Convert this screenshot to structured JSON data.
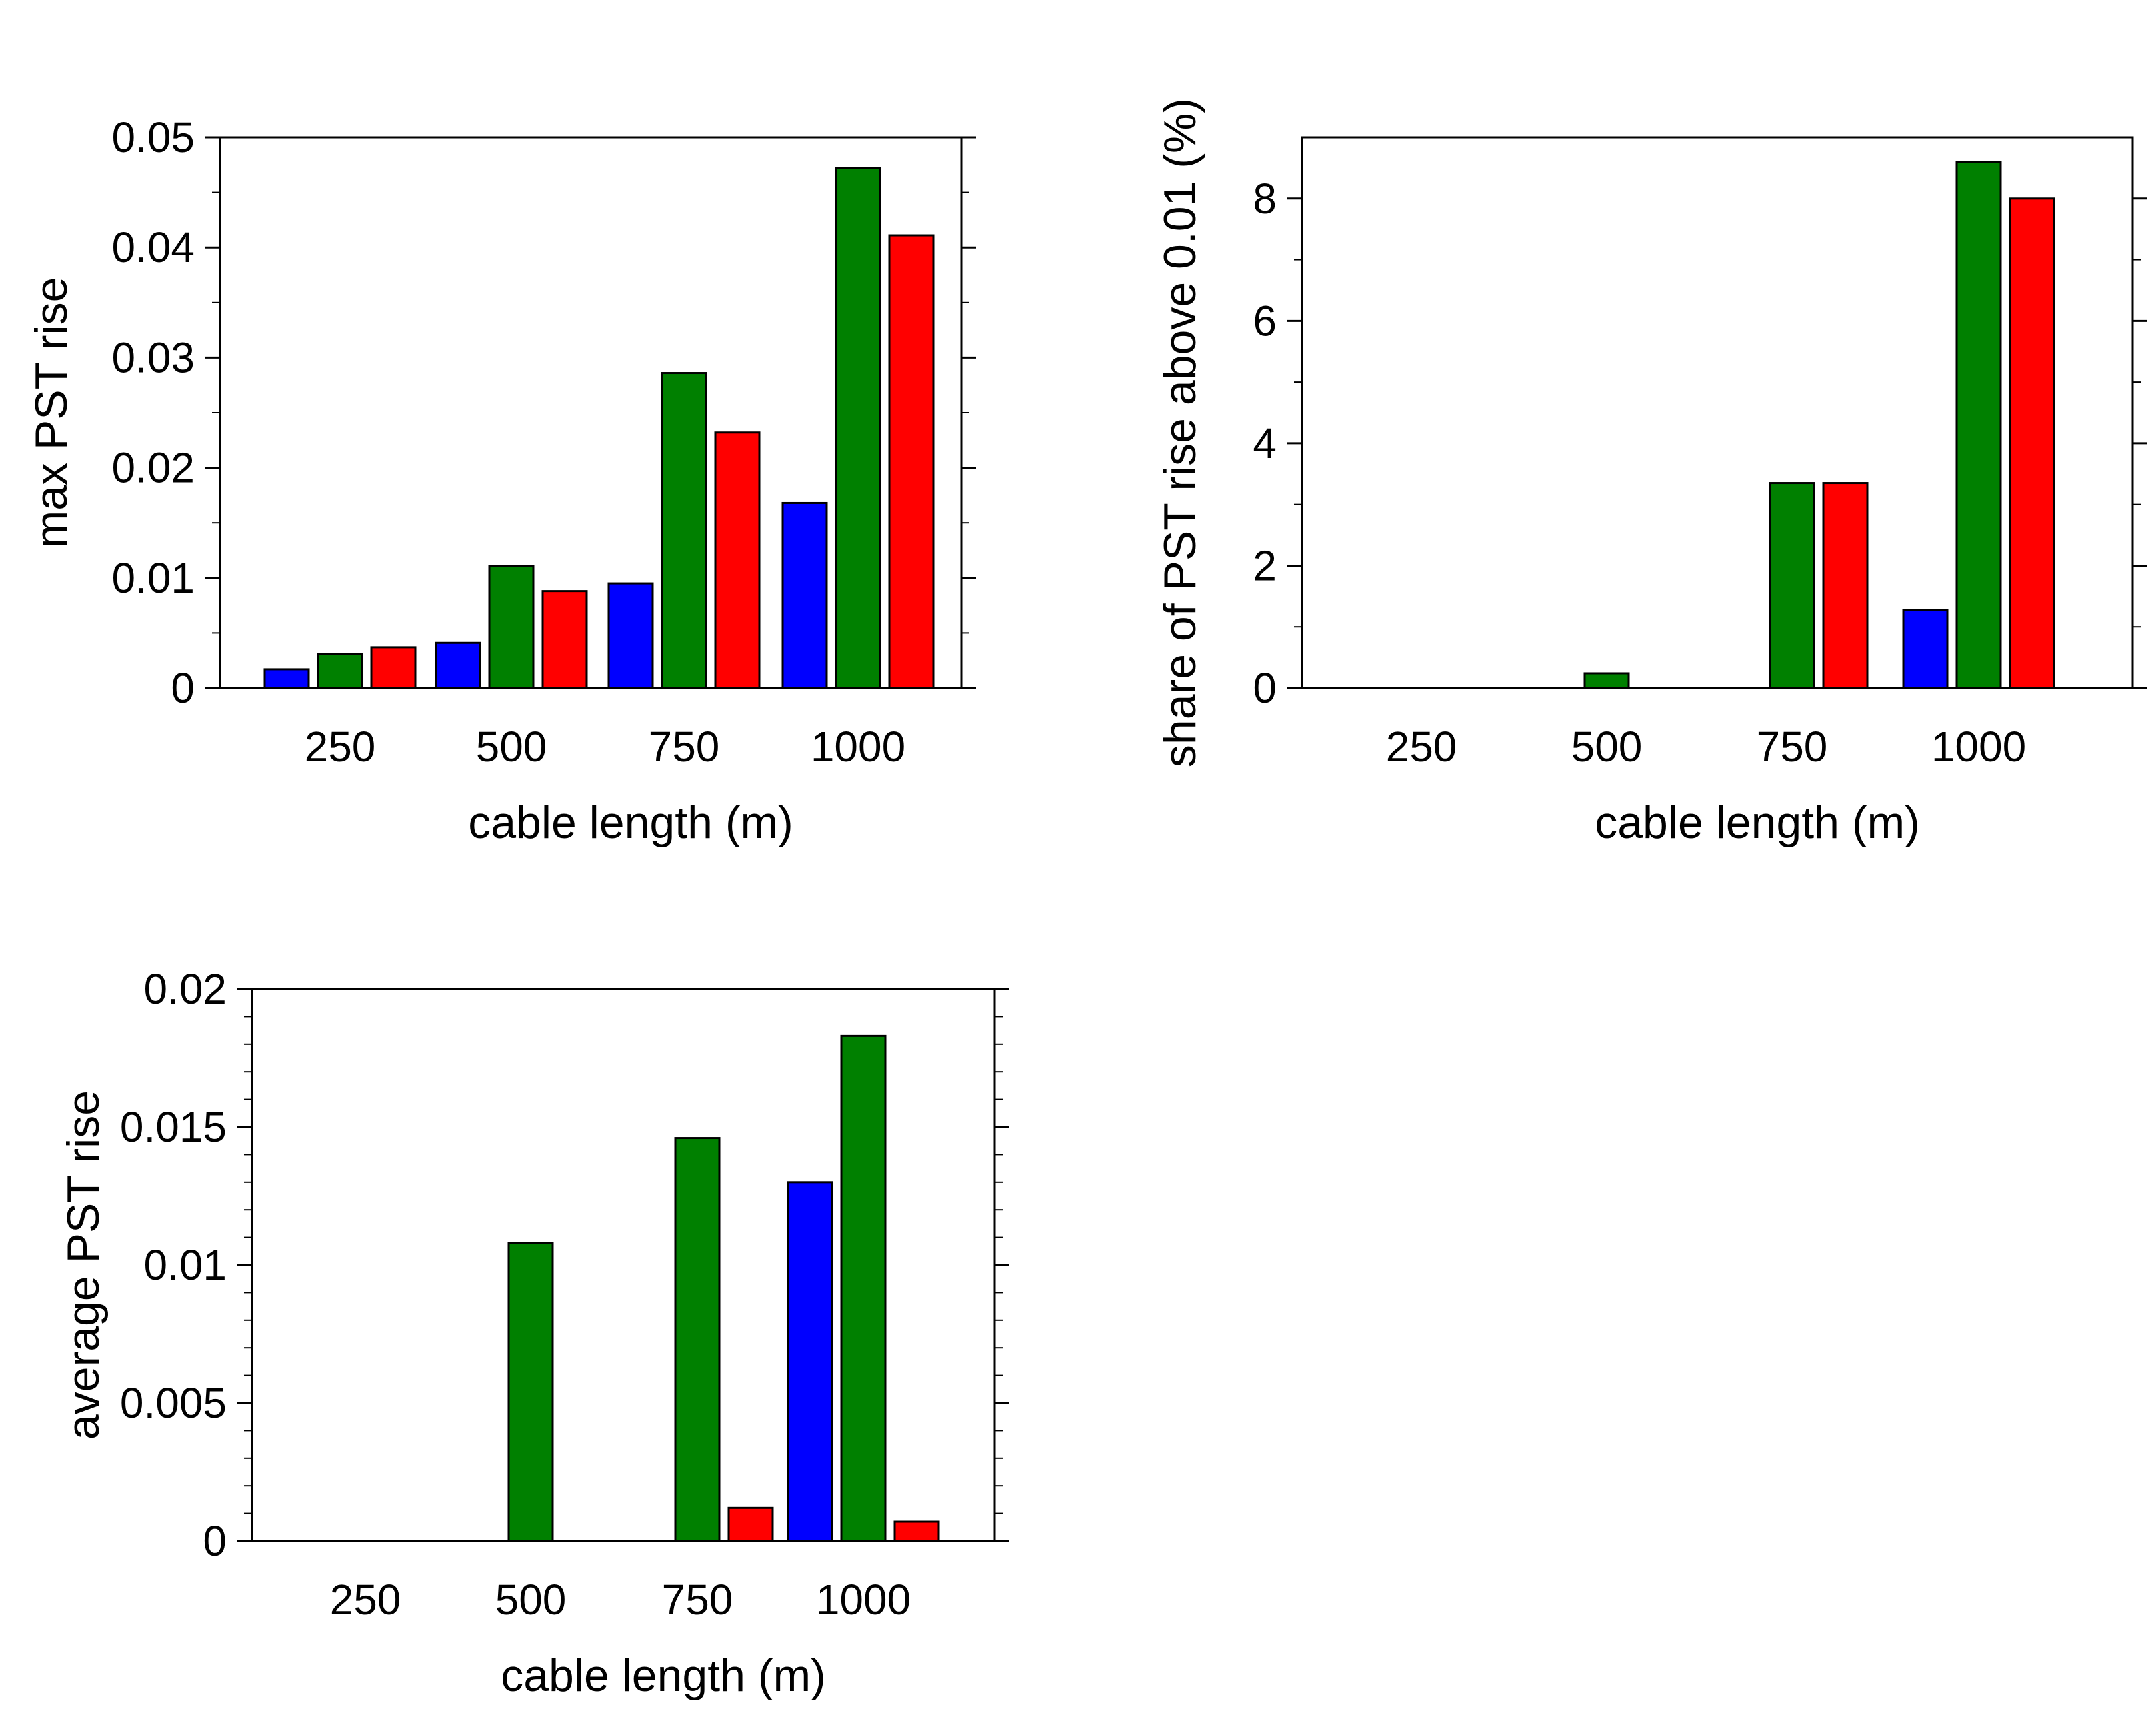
{
  "colors": {
    "blue": "#0000ff",
    "green": "#008000",
    "red": "#ff0000"
  },
  "chart_data": [
    {
      "type": "bar",
      "title": "",
      "xlabel": "cable length (m)",
      "ylabel": "max PST rise",
      "categories": [
        "250",
        "500",
        "750",
        "1000"
      ],
      "ylim": [
        0,
        0.05
      ],
      "yticks": [
        0,
        0.01,
        0.02,
        0.03,
        0.04,
        0.05
      ],
      "ytick_labels": [
        "0",
        "0.01",
        "0.02",
        "0.03",
        "0.04",
        "0.05"
      ],
      "series": [
        {
          "name": "blue",
          "color": "#0000ff",
          "values": [
            0.0017,
            0.0041,
            0.0095,
            0.0168
          ]
        },
        {
          "name": "green",
          "color": "#008000",
          "values": [
            0.0031,
            0.0111,
            0.0286,
            0.0472
          ]
        },
        {
          "name": "red",
          "color": "#ff0000",
          "values": [
            0.0037,
            0.0088,
            0.0232,
            0.0411
          ]
        }
      ]
    },
    {
      "type": "bar",
      "title": "",
      "xlabel": "cable length (m)",
      "ylabel": "share of PST rise above 0.01 (%)",
      "categories": [
        "250",
        "500",
        "750",
        "1000"
      ],
      "ylim": [
        0,
        9
      ],
      "yticks": [
        0,
        2,
        4,
        6,
        8
      ],
      "ytick_labels": [
        "0",
        "2",
        "4",
        "6",
        "8"
      ],
      "series": [
        {
          "name": "blue",
          "color": "#0000ff",
          "values": [
            0,
            0,
            0,
            1.28
          ]
        },
        {
          "name": "green",
          "color": "#008000",
          "values": [
            0,
            0.24,
            3.35,
            8.6
          ]
        },
        {
          "name": "red",
          "color": "#ff0000",
          "values": [
            0,
            0,
            3.35,
            8.0
          ]
        }
      ]
    },
    {
      "type": "bar",
      "title": "",
      "xlabel": "cable length (m)",
      "ylabel": "average PST rise",
      "categories": [
        "250",
        "500",
        "750",
        "1000"
      ],
      "ylim": [
        0,
        0.02
      ],
      "yticks": [
        0,
        0.005,
        0.01,
        0.015,
        0.02
      ],
      "ytick_labels": [
        "0",
        "0.005",
        "0.01",
        "0.015",
        "0.02"
      ],
      "series": [
        {
          "name": "blue",
          "color": "#0000ff",
          "values": [
            0,
            0,
            0,
            0.013
          ]
        },
        {
          "name": "green",
          "color": "#008000",
          "values": [
            0,
            0.0108,
            0.0146,
            0.0183
          ]
        },
        {
          "name": "red",
          "color": "#ff0000",
          "values": [
            0,
            0,
            0.0012,
            0.0007
          ]
        }
      ]
    }
  ]
}
